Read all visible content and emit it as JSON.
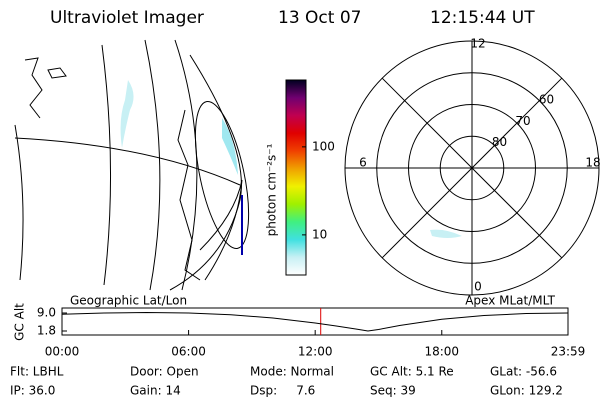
{
  "header": {
    "title": "Ultraviolet Imager",
    "date": "13 Oct 07",
    "time": "12:15:44 UT"
  },
  "colorbar": {
    "label": "photon cm⁻²s⁻¹",
    "ticks": [
      10,
      100
    ],
    "lim": [
      3.5,
      575
    ],
    "log": true,
    "colors": [
      "#ffffff",
      "#c8f0f4",
      "#40e0e0",
      "#40f080",
      "#a0f000",
      "#f0f000",
      "#f0a000",
      "#f04000",
      "#e00000",
      "#c00050",
      "#700070",
      "#000020"
    ]
  },
  "polar": {
    "rlim": [
      90,
      50
    ],
    "lat_ticks": [
      60,
      70,
      80
    ],
    "mlt_ticks": [
      12,
      18,
      6,
      0
    ]
  },
  "chart_data": {
    "type": "line",
    "title_left": "Geographic Lat/Lon",
    "title_right": "Apex MLat/MLT",
    "ylabel": "GC Alt",
    "x": [
      0,
      2,
      4,
      6,
      8,
      10,
      12,
      13,
      14,
      14.5,
      15,
      16,
      18,
      20,
      22,
      23.983
    ],
    "values": [
      8.5,
      9.0,
      9.2,
      9.0,
      8.3,
      7.0,
      5.0,
      3.8,
      2.5,
      1.8,
      2.4,
      4.0,
      6.5,
      8.0,
      8.8,
      9.0
    ],
    "xlim": [
      0,
      23.983
    ],
    "xticks": [
      {
        "value": 0,
        "label": "00:00"
      },
      {
        "value": 6,
        "label": "06:00"
      },
      {
        "value": 12,
        "label": "12:00"
      },
      {
        "value": 18,
        "label": "18:00"
      },
      {
        "value": 23.983,
        "label": "23:59"
      }
    ],
    "ylim": [
      0.2,
      11.0
    ],
    "yticks": [
      {
        "value": 1.8,
        "label": "1.8"
      },
      {
        "value": 9,
        "label": "9.0"
      }
    ],
    "marker_x": 12.262,
    "color": "#000000",
    "marker_color": "#dd0000"
  },
  "footer": {
    "rows": [
      [
        "Flt: LBHL",
        "Door: Open",
        "Mode: Normal",
        "GC Alt: 5.1 Re",
        "GLat: -56.6"
      ],
      [
        "IP: 36.0",
        "Gain: 14",
        "Dsp:     7.6",
        "Seq: 39",
        "GLon: 129.2"
      ]
    ]
  }
}
